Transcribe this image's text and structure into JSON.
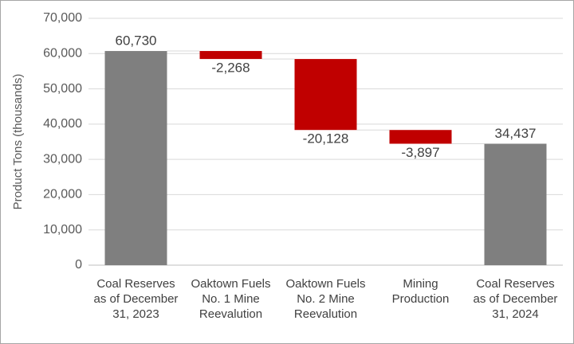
{
  "chart_data": {
    "type": "waterfall",
    "y_label": "Product Tons (thousands)",
    "categories": [
      "Coal Reserves as of December 31, 2023",
      "Oaktown Fuels No. 1 Mine Reevalution",
      "Oaktown Fuels No. 2 Mine Reevalution",
      "Mining Production",
      "Coal Reserves as of December 31, 2024"
    ],
    "values": [
      60730,
      -2268,
      -20128,
      -3897,
      34437
    ],
    "value_labels": [
      "60,730",
      "-2,268",
      "-20,128",
      "-3,897",
      "34,437"
    ],
    "colors": [
      "#7f7f7f",
      "#c00000",
      "#c00000",
      "#c00000",
      "#7f7f7f"
    ],
    "ylim": [
      0,
      70000
    ],
    "yticks": [
      0,
      {
        "value": 10000,
        "label": "10,000"
      },
      {
        "value": 20000,
        "label": "20,000"
      },
      {
        "value": 30000,
        "label": "30,000"
      },
      {
        "value": 40000,
        "label": "40,000"
      },
      {
        "value": 50000,
        "label": "50,000"
      },
      {
        "value": 60000,
        "label": "60,000"
      },
      {
        "value": 70000,
        "label": "70,000"
      }
    ],
    "grid": true
  }
}
